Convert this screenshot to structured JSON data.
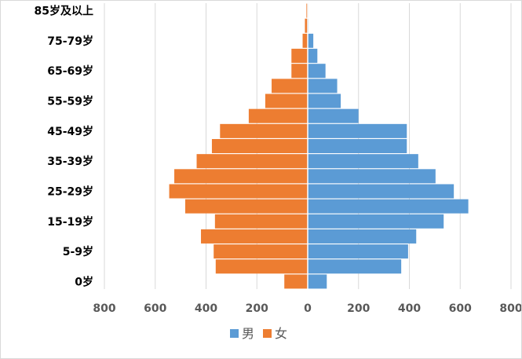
{
  "chart_data": {
    "type": "bar",
    "orientation": "horizontal",
    "layout": "population-pyramid",
    "title": "",
    "xlabel": "",
    "ylabel": "",
    "categories": [
      "0岁",
      "",
      "5-9岁",
      "",
      "15-19岁",
      "",
      "25-29岁",
      "",
      "35-39岁",
      "",
      "45-49岁",
      "",
      "55-59岁",
      "",
      "65-69岁",
      "",
      "75-79岁",
      "",
      "85岁及以上"
    ],
    "xlim": [
      -800,
      800
    ],
    "x_ticks": [
      -800,
      -600,
      -400,
      -200,
      0,
      200,
      400,
      600,
      800
    ],
    "x_tick_labels": [
      "800",
      "600",
      "400",
      "200",
      "0",
      "200",
      "400",
      "600",
      "800"
    ],
    "grid": "vertical",
    "legend_position": "bottom",
    "series": [
      {
        "name": "男",
        "color": "#5b9bd5",
        "side": "right",
        "values": [
          75,
          368,
          395,
          427,
          535,
          632,
          575,
          503,
          435,
          390,
          390,
          200,
          130,
          116,
          70,
          38,
          22,
          3,
          2
        ]
      },
      {
        "name": "女",
        "color": "#ed7d31",
        "side": "left",
        "values": [
          92,
          362,
          370,
          420,
          365,
          482,
          545,
          525,
          437,
          377,
          345,
          232,
          167,
          142,
          64,
          64,
          20,
          11,
          5
        ]
      }
    ]
  }
}
